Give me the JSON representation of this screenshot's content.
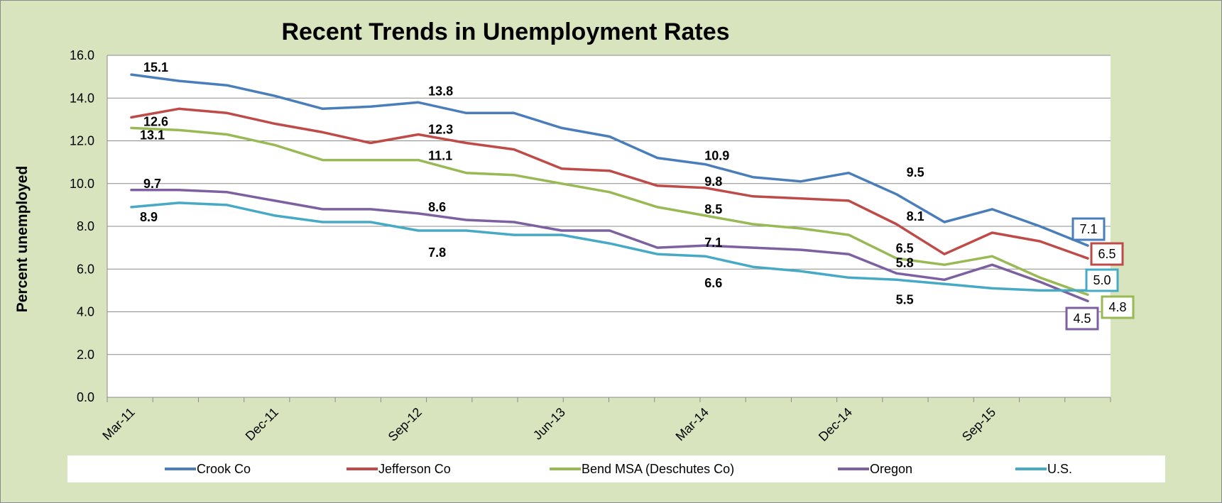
{
  "chart_data": {
    "type": "line",
    "title": "Recent Trends in Unemployment Rates",
    "xlabel": "",
    "ylabel": "Percent unemployed",
    "ylim": [
      0,
      16
    ],
    "yticks": [
      "0.0",
      "2.0",
      "4.0",
      "6.0",
      "8.0",
      "10.0",
      "12.0",
      "14.0",
      "16.0"
    ],
    "grid": true,
    "legend": "bottom",
    "x": [
      "Mar-11",
      "Jun-11",
      "Sep-11",
      "Dec-11",
      "Mar-12",
      "Jun-12",
      "Sep-12",
      "Dec-12",
      "Mar-13",
      "Jun-13",
      "Sep-13",
      "Dec-13",
      "Mar-14",
      "Jun-14",
      "Sep-14",
      "Dec-14",
      "Mar-15",
      "Jun-15",
      "Sep-15",
      "Dec-15",
      "Mar-16"
    ],
    "xtick_labels": [
      "Mar-11",
      "Dec-11",
      "Sep-12",
      "Jun-13",
      "Mar-14",
      "Dec-14",
      "Sep-15"
    ],
    "series": [
      {
        "name": "Crook Co",
        "color": "#4a7ebb",
        "values": [
          15.1,
          14.8,
          14.6,
          14.1,
          13.5,
          13.6,
          13.8,
          13.3,
          13.3,
          12.6,
          12.2,
          11.2,
          10.9,
          10.3,
          10.1,
          10.5,
          9.5,
          8.2,
          8.8,
          8.0,
          7.1
        ]
      },
      {
        "name": "Jefferson Co",
        "color": "#be4b48",
        "values": [
          13.1,
          13.5,
          13.3,
          12.8,
          12.4,
          11.9,
          12.3,
          11.9,
          11.6,
          10.7,
          10.6,
          9.9,
          9.8,
          9.4,
          9.3,
          9.2,
          8.1,
          6.7,
          7.7,
          7.3,
          6.5
        ]
      },
      {
        "name": "Bend MSA (Deschutes Co)",
        "color": "#98b954",
        "values": [
          12.6,
          12.5,
          12.3,
          11.8,
          11.1,
          11.1,
          11.1,
          10.5,
          10.4,
          10.0,
          9.6,
          8.9,
          8.5,
          8.1,
          7.9,
          7.6,
          6.5,
          6.2,
          6.6,
          5.6,
          4.8
        ]
      },
      {
        "name": "Oregon",
        "color": "#7d60a0",
        "values": [
          9.7,
          9.7,
          9.6,
          9.2,
          8.8,
          8.8,
          8.6,
          8.3,
          8.2,
          7.8,
          7.8,
          7.0,
          7.1,
          7.0,
          6.9,
          6.7,
          5.8,
          5.5,
          6.2,
          5.4,
          4.5
        ]
      },
      {
        "name": "U.S.",
        "color": "#46aac5",
        "values": [
          8.9,
          9.1,
          9.0,
          8.5,
          8.2,
          8.2,
          7.8,
          7.8,
          7.6,
          7.6,
          7.2,
          6.7,
          6.6,
          6.1,
          5.9,
          5.6,
          5.5,
          5.3,
          5.1,
          5.0,
          5.0
        ]
      }
    ],
    "data_labels": [
      {
        "series": 0,
        "index": 0,
        "text": "15.1"
      },
      {
        "series": 1,
        "index": 0,
        "text": "13.1"
      },
      {
        "series": 2,
        "index": 0,
        "text": "12.6"
      },
      {
        "series": 3,
        "index": 0,
        "text": "9.7"
      },
      {
        "series": 4,
        "index": 0,
        "text": "8.9"
      },
      {
        "series": 0,
        "index": 6,
        "text": "13.8"
      },
      {
        "series": 1,
        "index": 6,
        "text": "12.3"
      },
      {
        "series": 2,
        "index": 6,
        "text": "11.1"
      },
      {
        "series": 3,
        "index": 6,
        "text": "8.6"
      },
      {
        "series": 4,
        "index": 6,
        "text": "7.8"
      },
      {
        "series": 0,
        "index": 12,
        "text": "10.9"
      },
      {
        "series": 1,
        "index": 12,
        "text": "9.8"
      },
      {
        "series": 2,
        "index": 12,
        "text": "8.5"
      },
      {
        "series": 3,
        "index": 12,
        "text": "7.1"
      },
      {
        "series": 4,
        "index": 12,
        "text": "6.6"
      },
      {
        "series": 0,
        "index": 16,
        "text": "9.5"
      },
      {
        "series": 1,
        "index": 16,
        "text": "8.1"
      },
      {
        "series": 2,
        "index": 16,
        "text": "6.5"
      },
      {
        "series": 3,
        "index": 16,
        "text": "5.8"
      },
      {
        "series": 4,
        "index": 16,
        "text": "5.5"
      }
    ],
    "end_labels": [
      {
        "series": 0,
        "text": "7.1"
      },
      {
        "series": 1,
        "text": "6.5"
      },
      {
        "series": 4,
        "text": "5.0"
      },
      {
        "series": 2,
        "text": "4.8"
      },
      {
        "series": 3,
        "text": "4.5"
      }
    ]
  }
}
